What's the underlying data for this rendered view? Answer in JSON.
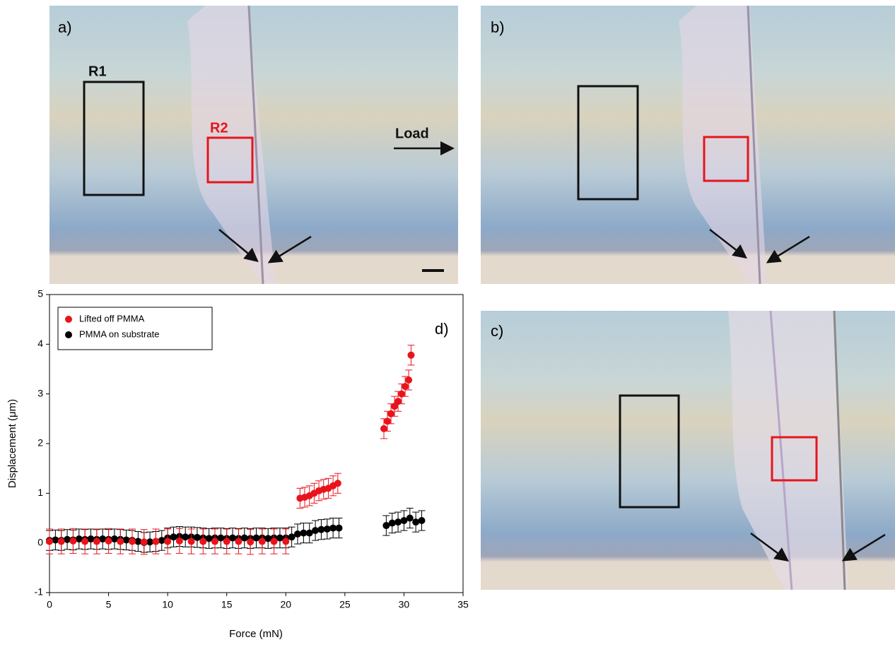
{
  "panels": {
    "a": {
      "label": "a)",
      "r1": "R1",
      "r2": "R2",
      "load": "Load"
    },
    "b": {
      "label": "b)"
    },
    "c": {
      "label": "c)"
    }
  },
  "chart_data": {
    "type": "scatter",
    "panel_label": "d)",
    "x_label": "Force (mN)",
    "y_label": "Displacement (μm)",
    "xlim": [
      0,
      35
    ],
    "xticks": [
      0,
      5,
      10,
      15,
      20,
      25,
      30,
      35
    ],
    "ylim": [
      -1,
      5
    ],
    "yticks": [
      -1,
      0,
      1,
      2,
      3,
      4,
      5
    ],
    "legend": "upper left",
    "series": [
      {
        "name": "Lifted off PMMA",
        "color": "#e8141c",
        "x": [
          0,
          1,
          2,
          3,
          4,
          5,
          6,
          7,
          8,
          9,
          10,
          11,
          12,
          13,
          14,
          15,
          16,
          17,
          18,
          19,
          20,
          21.2,
          21.6,
          22,
          22.4,
          22.8,
          23.2,
          23.6,
          24,
          24.4,
          28.3,
          28.6,
          28.9,
          29.2,
          29.5,
          29.8,
          30.1,
          30.4,
          30.6
        ],
        "values": [
          0.03,
          0.03,
          0.04,
          0.03,
          0.03,
          0.04,
          0.03,
          0.03,
          0.02,
          0.03,
          0.03,
          0.04,
          0.03,
          0.03,
          0.03,
          0.03,
          0.03,
          0.02,
          0.03,
          0.03,
          0.03,
          0.9,
          0.92,
          0.95,
          1.0,
          1.05,
          1.08,
          1.1,
          1.15,
          1.2,
          2.3,
          2.45,
          2.6,
          2.75,
          2.85,
          3.0,
          3.15,
          3.28,
          3.78
        ],
        "errors": [
          0.25,
          0.25,
          0.25,
          0.25,
          0.25,
          0.25,
          0.25,
          0.25,
          0.25,
          0.25,
          0.25,
          0.25,
          0.25,
          0.25,
          0.25,
          0.25,
          0.25,
          0.25,
          0.25,
          0.25,
          0.25,
          0.2,
          0.2,
          0.2,
          0.2,
          0.2,
          0.2,
          0.2,
          0.2,
          0.2,
          0.2,
          0.2,
          0.2,
          0.2,
          0.2,
          0.2,
          0.2,
          0.2,
          0.2
        ]
      },
      {
        "name": "PMMA on substrate",
        "color": "#000000",
        "x": [
          0,
          0.5,
          1,
          1.5,
          2,
          2.5,
          3,
          3.5,
          4,
          4.5,
          5,
          5.5,
          6,
          6.5,
          7,
          7.5,
          8,
          8.5,
          9,
          9.5,
          10,
          10.5,
          11,
          11.5,
          12,
          12.5,
          13,
          13.5,
          14,
          14.5,
          15,
          15.5,
          16,
          16.5,
          17,
          17.5,
          18,
          18.5,
          19,
          19.5,
          20,
          20.5,
          21,
          21.5,
          22,
          22.5,
          23,
          23.5,
          24,
          24.5,
          28.5,
          29,
          29.5,
          30,
          30.5,
          31,
          31.5
        ],
        "values": [
          0.05,
          0.06,
          0.05,
          0.07,
          0.06,
          0.08,
          0.07,
          0.08,
          0.07,
          0.08,
          0.07,
          0.08,
          0.07,
          0.06,
          0.05,
          0.03,
          0.01,
          0.02,
          0.03,
          0.05,
          0.1,
          0.12,
          0.13,
          0.12,
          0.12,
          0.11,
          0.1,
          0.09,
          0.1,
          0.1,
          0.09,
          0.1,
          0.09,
          0.1,
          0.09,
          0.1,
          0.1,
          0.09,
          0.1,
          0.1,
          0.1,
          0.12,
          0.18,
          0.2,
          0.2,
          0.25,
          0.27,
          0.28,
          0.3,
          0.3,
          0.35,
          0.4,
          0.42,
          0.45,
          0.5,
          0.42,
          0.45
        ],
        "errors": [
          0.2,
          0.2,
          0.2,
          0.2,
          0.2,
          0.2,
          0.2,
          0.2,
          0.2,
          0.2,
          0.2,
          0.2,
          0.2,
          0.2,
          0.2,
          0.2,
          0.2,
          0.2,
          0.2,
          0.2,
          0.2,
          0.2,
          0.2,
          0.2,
          0.2,
          0.2,
          0.2,
          0.2,
          0.2,
          0.2,
          0.2,
          0.2,
          0.2,
          0.2,
          0.2,
          0.2,
          0.2,
          0.2,
          0.2,
          0.2,
          0.2,
          0.2,
          0.2,
          0.2,
          0.2,
          0.2,
          0.2,
          0.2,
          0.2,
          0.2,
          0.2,
          0.2,
          0.2,
          0.2,
          0.2,
          0.2,
          0.2
        ]
      }
    ]
  }
}
